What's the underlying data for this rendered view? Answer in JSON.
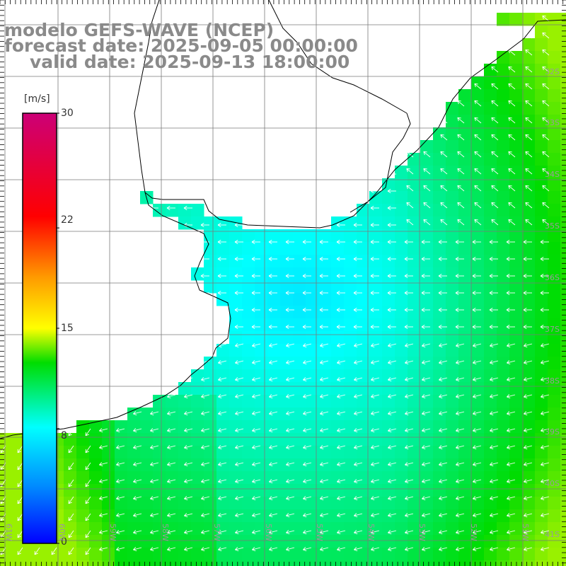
{
  "header": {
    "model_line": "modelo GEFS-WAVE (NCEP)",
    "forecast_line": "forecast date: 2025-09-05 00:00:00",
    "valid_line": "valid date: 2025-09-13 18:00:00"
  },
  "colorbar": {
    "unit": "[m/s]",
    "ticks": [
      "30",
      "22",
      "15",
      "8",
      "0"
    ],
    "tick_values": [
      30,
      22,
      15,
      8,
      0
    ],
    "range": [
      0,
      30
    ]
  },
  "axes": {
    "lat_labels": [
      "32S",
      "33S",
      "34S",
      "35S",
      "36S",
      "37S",
      "38S",
      "39S",
      "40S",
      "41S"
    ],
    "lon_labels": [
      "61W",
      "60W",
      "59W",
      "58W",
      "57W",
      "56W",
      "55W",
      "54W",
      "53W",
      "52W",
      "51W"
    ]
  },
  "colors": {
    "title": "#8a8a8a",
    "land": "#ffffff",
    "coast": "#000000",
    "grid": "#7a7a7a",
    "arrows": "#ffffff"
  },
  "icons": {
    "wind_vector": "arrow-icon"
  }
}
